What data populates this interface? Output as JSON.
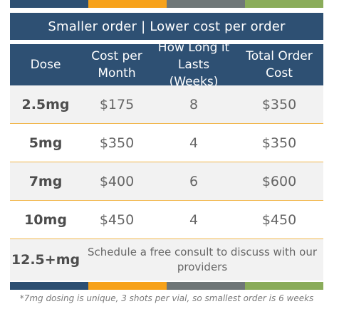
{
  "colors": {
    "navy": "#2e5073",
    "orange": "#f7a21b",
    "gray": "#6f7778",
    "green": "#8aac5a",
    "divider": "#f1b64a"
  },
  "banner": {
    "text": "Smaller order | Lower cost per order"
  },
  "table": {
    "headers": [
      "Dose",
      "Cost per\nMonth",
      "How Long it\nLasts (Weeks)",
      "Total Order\nCost"
    ],
    "rows": [
      {
        "dose": "2.5mg",
        "cost_per_month": "$175",
        "weeks": "8",
        "total": "$350"
      },
      {
        "dose": "5mg",
        "cost_per_month": "$350",
        "weeks": "4",
        "total": "$350"
      },
      {
        "dose": "7mg",
        "cost_per_month": "$400",
        "weeks": "6",
        "total": "$600"
      },
      {
        "dose": "10mg",
        "cost_per_month": "$450",
        "weeks": "4",
        "total": "$450"
      }
    ],
    "last_row": {
      "dose": "12.5+mg",
      "note": "Schedule a free consult to discuss with our providers"
    }
  },
  "footnote": "*7mg dosing is unique, 3 shots per vial, so smallest order is 6 weeks"
}
